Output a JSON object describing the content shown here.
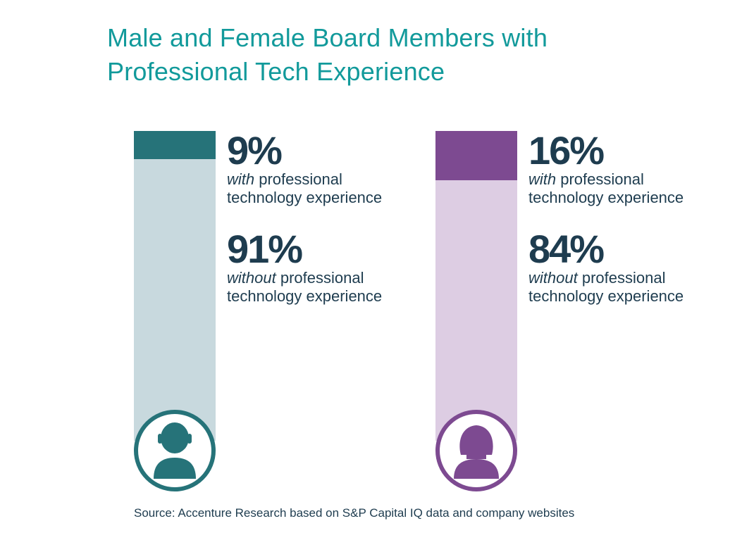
{
  "chart_data": {
    "type": "bar",
    "title": "Male and Female Board Members with Professional Tech Experience",
    "categories": [
      "Male",
      "Female"
    ],
    "series": [
      {
        "name": "with professional technology experience",
        "values": [
          9,
          16
        ]
      },
      {
        "name": "without professional technology experience",
        "values": [
          91,
          84
        ]
      }
    ],
    "ylim": [
      0,
      100
    ]
  },
  "title_lines": [
    "Male and Female Board Members with",
    "Professional Tech Experience"
  ],
  "male": {
    "with_pct": "9%",
    "with_emph": "with",
    "with_rest": " professional",
    "with_line2": "technology experience",
    "without_pct": "91%",
    "without_emph": "without",
    "without_rest": " professional",
    "without_line2": "technology experience",
    "icon": "male-person-icon"
  },
  "female": {
    "with_pct": "16%",
    "with_emph": "with",
    "with_rest": " professional",
    "with_line2": "technology experience",
    "without_pct": "84%",
    "without_emph": "without",
    "without_rest": " professional",
    "without_line2": "technology experience",
    "icon": "female-person-icon"
  },
  "source": "Source: Accenture Research based on S&P Capital IQ data and company websites",
  "colors": {
    "title": "#129a9b",
    "text": "#1e3c4f",
    "male_fill": "#267379",
    "male_track": "#c8d9de",
    "female_fill": "#7d4a91",
    "female_track": "#ddcde3"
  }
}
